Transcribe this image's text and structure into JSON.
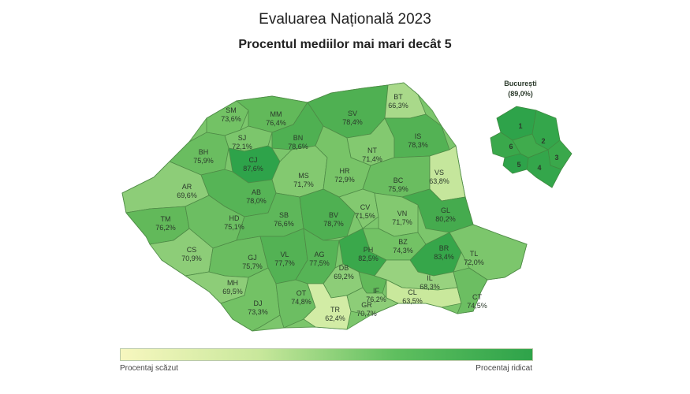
{
  "title": "Evaluarea Națională 2023",
  "subtitle": "Procentul mediilor mai mari decât 5",
  "legend": {
    "low_label": "Procentaj scăzut",
    "high_label": "Procentaj ridicat",
    "colors": [
      "#f7f7bf",
      "#c9e89c",
      "#5fbf5f",
      "#2ea34a"
    ]
  },
  "bucharest": {
    "name": "București",
    "value": "(89,0%)",
    "sectors": [
      "1",
      "2",
      "3",
      "4",
      "5",
      "6"
    ]
  },
  "counties": [
    {
      "code": "SM",
      "value": "73,6%"
    },
    {
      "code": "MM",
      "value": "76,4%"
    },
    {
      "code": "SV",
      "value": "78,4%"
    },
    {
      "code": "BT",
      "value": "66,3%"
    },
    {
      "code": "SJ",
      "value": "72,1%"
    },
    {
      "code": "BN",
      "value": "78,6%"
    },
    {
      "code": "BH",
      "value": "75,9%"
    },
    {
      "code": "CJ",
      "value": "87,6%"
    },
    {
      "code": "NT",
      "value": "71,4%"
    },
    {
      "code": "IS",
      "value": "78,3%"
    },
    {
      "code": "MS",
      "value": "71,7%"
    },
    {
      "code": "HR",
      "value": "72,9%"
    },
    {
      "code": "BC",
      "value": "75,9%"
    },
    {
      "code": "VS",
      "value": "63,8%"
    },
    {
      "code": "AR",
      "value": "69,6%"
    },
    {
      "code": "AB",
      "value": "78,0%"
    },
    {
      "code": "TM",
      "value": "76,2%"
    },
    {
      "code": "HD",
      "value": "75,1%"
    },
    {
      "code": "SB",
      "value": "76,6%"
    },
    {
      "code": "BV",
      "value": "78,7%"
    },
    {
      "code": "CV",
      "value": "71,5%"
    },
    {
      "code": "VN",
      "value": "71,7%"
    },
    {
      "code": "GL",
      "value": "80,2%"
    },
    {
      "code": "CS",
      "value": "70,9%"
    },
    {
      "code": "BZ",
      "value": "74,3%"
    },
    {
      "code": "GJ",
      "value": "75,7%"
    },
    {
      "code": "VL",
      "value": "77,7%"
    },
    {
      "code": "AG",
      "value": "77,5%"
    },
    {
      "code": "PH",
      "value": "82,5%"
    },
    {
      "code": "BR",
      "value": "83,4%"
    },
    {
      "code": "TL",
      "value": "72,0%"
    },
    {
      "code": "DB",
      "value": "69,2%"
    },
    {
      "code": "MH",
      "value": "69,5%"
    },
    {
      "code": "IF",
      "value": "76,2%"
    },
    {
      "code": "IL",
      "value": "68,3%"
    },
    {
      "code": "DJ",
      "value": "73,3%"
    },
    {
      "code": "OT",
      "value": "74,8%"
    },
    {
      "code": "CL",
      "value": "63,5%"
    },
    {
      "code": "CT",
      "value": "74,5%"
    },
    {
      "code": "TR",
      "value": "62,4%"
    },
    {
      "code": "GR",
      "value": "70,7%"
    }
  ]
}
